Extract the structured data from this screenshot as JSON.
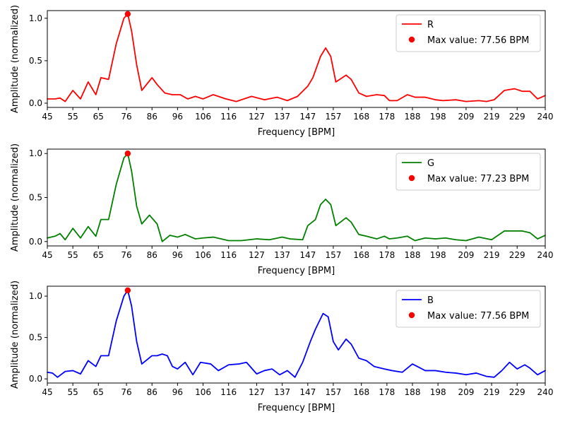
{
  "chart_data": [
    {
      "type": "line",
      "xlabel": "Frequency [BPM]",
      "ylabel": "Amplitude (normalized)",
      "xlim": [
        45,
        240
      ],
      "ylim": [
        -0.05,
        1.09
      ],
      "x_ticks": [
        45,
        55,
        65,
        76,
        86,
        96,
        106,
        116,
        127,
        137,
        147,
        157,
        168,
        178,
        188,
        198,
        209,
        219,
        229,
        240
      ],
      "y_ticks": [
        0.0,
        0.5,
        1.0
      ],
      "y_tick_labels": [
        "0.0",
        "0.5",
        "1.0"
      ],
      "grid": false,
      "legend_position": "top-right",
      "series": [
        {
          "name": "R",
          "color": "#ff0000",
          "x": [
            45,
            48,
            50,
            52,
            55,
            58,
            61,
            64,
            66,
            69,
            72,
            75,
            76.5,
            78,
            80,
            82,
            86,
            88,
            91,
            94,
            97,
            100,
            103,
            106,
            110,
            115,
            119,
            125,
            130,
            135,
            139,
            143,
            147,
            149,
            152,
            154,
            156,
            158,
            162,
            164,
            167,
            170,
            174,
            177,
            179,
            182,
            186,
            189,
            193,
            197,
            200,
            205,
            209,
            214,
            217,
            220,
            224,
            228,
            231,
            234,
            237,
            240
          ],
          "values": [
            0.05,
            0.05,
            0.06,
            0.02,
            0.15,
            0.05,
            0.25,
            0.1,
            0.3,
            0.28,
            0.7,
            1.0,
            1.05,
            0.85,
            0.45,
            0.15,
            0.3,
            0.22,
            0.12,
            0.1,
            0.1,
            0.05,
            0.08,
            0.05,
            0.1,
            0.05,
            0.02,
            0.08,
            0.04,
            0.07,
            0.03,
            0.08,
            0.2,
            0.3,
            0.55,
            0.65,
            0.55,
            0.25,
            0.33,
            0.28,
            0.12,
            0.08,
            0.1,
            0.09,
            0.03,
            0.03,
            0.1,
            0.07,
            0.07,
            0.04,
            0.03,
            0.04,
            0.02,
            0.03,
            0.02,
            0.04,
            0.15,
            0.17,
            0.14,
            0.14,
            0.05,
            0.09
          ]
        },
        {
          "name": "G",
          "color": "#008000",
          "x": [
            45,
            48,
            50,
            52,
            55,
            58,
            61,
            64,
            66,
            69,
            72,
            75,
            76.5,
            78,
            80,
            82,
            85,
            88,
            90,
            93,
            96,
            99,
            103,
            106,
            110,
            116,
            121,
            127,
            132,
            137,
            140,
            145,
            147,
            150,
            152,
            154,
            156,
            158,
            162,
            164,
            167,
            170,
            174,
            177,
            179,
            182,
            186,
            189,
            193,
            197,
            201,
            205,
            209,
            214,
            219,
            224,
            228,
            231,
            234,
            237,
            240
          ],
          "values": [
            0.04,
            0.06,
            0.09,
            0.02,
            0.15,
            0.04,
            0.17,
            0.06,
            0.25,
            0.25,
            0.65,
            0.95,
            1.0,
            0.8,
            0.4,
            0.2,
            0.3,
            0.2,
            0.0,
            0.07,
            0.05,
            0.08,
            0.03,
            0.04,
            0.05,
            0.01,
            0.01,
            0.03,
            0.02,
            0.05,
            0.03,
            0.02,
            0.18,
            0.25,
            0.42,
            0.48,
            0.42,
            0.18,
            0.27,
            0.22,
            0.08,
            0.06,
            0.03,
            0.06,
            0.03,
            0.04,
            0.06,
            0.01,
            0.04,
            0.03,
            0.04,
            0.02,
            0.01,
            0.05,
            0.02,
            0.12,
            0.12,
            0.12,
            0.1,
            0.03,
            0.07
          ]
        },
        {
          "name": "B",
          "color": "#0000ff",
          "x": [
            45,
            47,
            49,
            52,
            55,
            58,
            61,
            64,
            66,
            69,
            72,
            75,
            76.5,
            78,
            80,
            82,
            86,
            88,
            90,
            92,
            94,
            96,
            99,
            102,
            105,
            109,
            112,
            116,
            120,
            123,
            127,
            130,
            133,
            136,
            139,
            142,
            145,
            148,
            150,
            153,
            155,
            157,
            159,
            162,
            164,
            167,
            170,
            173,
            177,
            180,
            184,
            188,
            193,
            197,
            201,
            205,
            209,
            213,
            217,
            220,
            223,
            226,
            229,
            232,
            234,
            237,
            240
          ],
          "values": [
            0.08,
            0.07,
            0.02,
            0.09,
            0.1,
            0.06,
            0.22,
            0.15,
            0.28,
            0.28,
            0.7,
            1.0,
            1.07,
            0.88,
            0.45,
            0.18,
            0.28,
            0.28,
            0.3,
            0.28,
            0.15,
            0.12,
            0.2,
            0.05,
            0.2,
            0.18,
            0.1,
            0.17,
            0.18,
            0.2,
            0.06,
            0.1,
            0.12,
            0.05,
            0.1,
            0.02,
            0.2,
            0.45,
            0.6,
            0.79,
            0.75,
            0.45,
            0.35,
            0.48,
            0.42,
            0.25,
            0.22,
            0.15,
            0.12,
            0.1,
            0.08,
            0.18,
            0.1,
            0.1,
            0.08,
            0.07,
            0.05,
            0.07,
            0.03,
            0.02,
            0.1,
            0.2,
            0.12,
            0.17,
            0.13,
            0.05,
            0.1
          ]
        }
      ],
      "max_marker": {
        "label": "Max value: 77.56 BPM",
        "x": 76.5,
        "y": 1.05,
        "color": "#ff0000"
      }
    },
    {
      "type": "line",
      "xlabel": "Frequency [BPM]",
      "ylabel": "Amplitude (normalized)",
      "xlim": [
        45,
        240
      ],
      "ylim": [
        -0.05,
        1.05
      ],
      "x_ticks": [
        45,
        55,
        65,
        76,
        86,
        96,
        106,
        116,
        127,
        137,
        147,
        157,
        168,
        178,
        188,
        198,
        209,
        219,
        229,
        240
      ],
      "y_ticks": [
        0.0,
        0.5,
        1.0
      ],
      "y_tick_labels": [
        "0.0",
        "0.5",
        "1.0"
      ],
      "grid": false,
      "legend_position": "top-right",
      "series_ref": 1,
      "max_marker": {
        "label": "Max value: 77.23 BPM",
        "x": 76.5,
        "y": 1.0,
        "color": "#ff0000"
      }
    },
    {
      "type": "line",
      "xlabel": "Frequency [BPM]",
      "ylabel": "Amplitude (normalized)",
      "xlim": [
        45,
        240
      ],
      "ylim": [
        -0.05,
        1.12
      ],
      "x_ticks": [
        45,
        55,
        65,
        76,
        86,
        96,
        106,
        116,
        127,
        137,
        147,
        157,
        168,
        178,
        188,
        198,
        209,
        219,
        229,
        240
      ],
      "y_ticks": [
        0.0,
        0.5,
        1.0
      ],
      "y_tick_labels": [
        "0.0",
        "0.5",
        "1.0"
      ],
      "grid": false,
      "legend_position": "top-right",
      "series_ref": 2,
      "max_marker": {
        "label": "Max value: 77.56 BPM",
        "x": 76.5,
        "y": 1.07,
        "color": "#ff0000"
      }
    }
  ]
}
